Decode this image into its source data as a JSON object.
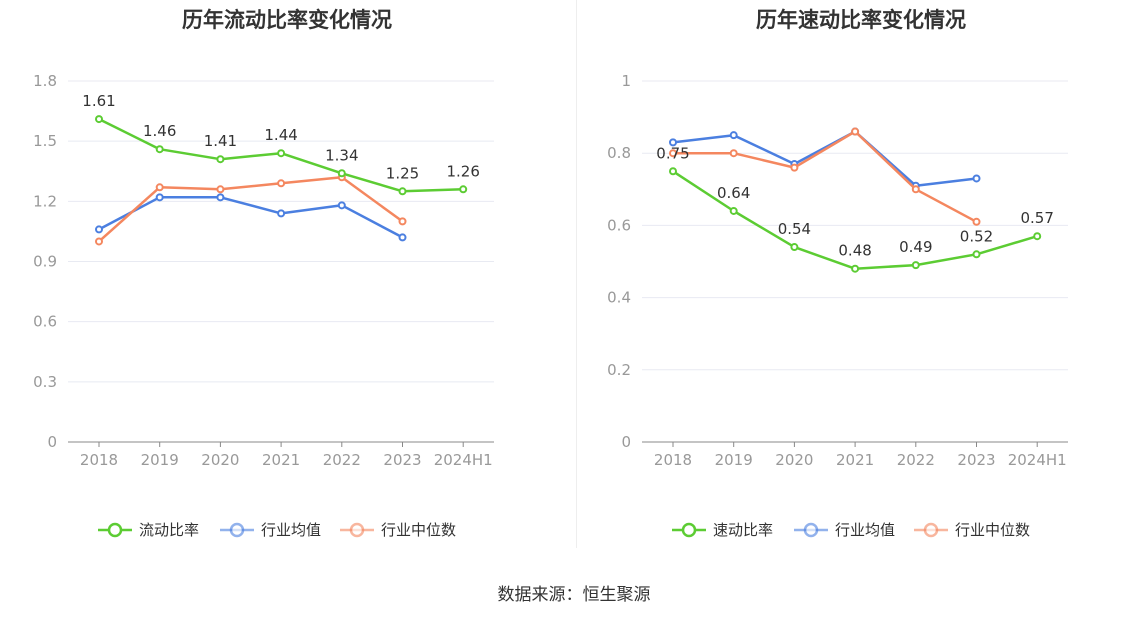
{
  "footer": {
    "source": "数据来源：恒生聚源"
  },
  "colors": {
    "primary": "#5ccc33",
    "average": "#4b7fe0",
    "median": "#f4875f",
    "grid": "#e8eaf2",
    "axis": "#888888"
  },
  "chart_data": [
    {
      "type": "line",
      "title": "历年流动比率变化情况",
      "categories": [
        "2018",
        "2019",
        "2020",
        "2021",
        "2022",
        "2023",
        "2024H1"
      ],
      "ylim": [
        0,
        1.8
      ],
      "yticks": [
        "0",
        "0.3",
        "0.6",
        "0.9",
        "1.2",
        "1.5",
        "1.8"
      ],
      "grid": true,
      "legend_position": "bottom",
      "series": [
        {
          "name": "流动比率",
          "color": "#5ccc33",
          "labels": true,
          "values": [
            1.61,
            1.46,
            1.41,
            1.44,
            1.34,
            1.25,
            1.26
          ]
        },
        {
          "name": "行业均值",
          "color": "#4b7fe0",
          "labels": false,
          "values": [
            1.06,
            1.22,
            1.22,
            1.14,
            1.18,
            1.02,
            null
          ]
        },
        {
          "name": "行业中位数",
          "color": "#f4875f",
          "labels": false,
          "values": [
            1.0,
            1.27,
            1.26,
            1.29,
            1.32,
            1.1,
            null
          ]
        }
      ]
    },
    {
      "type": "line",
      "title": "历年速动比率变化情况",
      "categories": [
        "2018",
        "2019",
        "2020",
        "2021",
        "2022",
        "2023",
        "2024H1"
      ],
      "ylim": [
        0,
        1
      ],
      "yticks": [
        "0",
        "0.2",
        "0.4",
        "0.6",
        "0.8",
        "1"
      ],
      "grid": true,
      "legend_position": "bottom",
      "series": [
        {
          "name": "速动比率",
          "color": "#5ccc33",
          "labels": true,
          "values": [
            0.75,
            0.64,
            0.54,
            0.48,
            0.49,
            0.52,
            0.57
          ]
        },
        {
          "name": "行业均值",
          "color": "#4b7fe0",
          "labels": false,
          "values": [
            0.83,
            0.85,
            0.77,
            0.86,
            0.71,
            0.73,
            null
          ]
        },
        {
          "name": "行业中位数",
          "color": "#f4875f",
          "labels": false,
          "values": [
            0.8,
            0.8,
            0.76,
            0.86,
            0.7,
            0.61,
            null
          ]
        }
      ]
    }
  ]
}
